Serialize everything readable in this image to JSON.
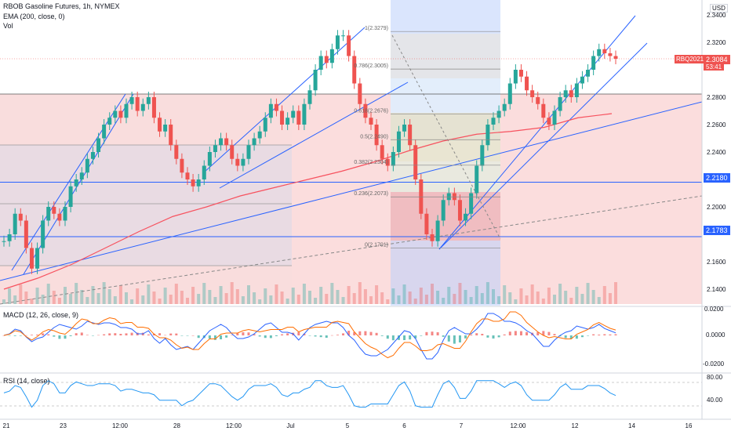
{
  "header": {
    "title": "RBOB Gasoline Futures, 1h, NYMEX",
    "indicator1": "EMA (200, close, 0)",
    "indicator2": "Vol",
    "currency": "USD"
  },
  "price_tag": {
    "symbol": "RBQ2021",
    "price": "2.3084",
    "countdown": "53:41"
  },
  "hlines": [
    {
      "value": 2.218,
      "label": "2.2180",
      "color": "#2962ff"
    },
    {
      "value": 2.1783,
      "label": "2.1783",
      "color": "#2962ff"
    }
  ],
  "fib": {
    "levels": [
      {
        "ratio": "1",
        "value": 2.3279,
        "label": "1(2.3279)"
      },
      {
        "ratio": "0.786",
        "value": 2.3005,
        "label": "0.786(2.3005)"
      },
      {
        "ratio": "0.618",
        "value": 2.2676,
        "label": "0.618(2.2676)"
      },
      {
        "ratio": "0.5",
        "value": 2.249,
        "label": "0.5(2.2490)"
      },
      {
        "ratio": "0.382",
        "value": 2.2304,
        "label": "0.382(2.2304)"
      },
      {
        "ratio": "0.236",
        "value": 2.2073,
        "label": "0.236(2.2073)"
      },
      {
        "ratio": "0",
        "value": 2.1701,
        "label": "0(2.1701)"
      }
    ]
  },
  "colors": {
    "up": "#26a69a",
    "down": "#ef5350",
    "ema": "#f7525f",
    "line_blue": "#2962ff",
    "macd": "#2962ff",
    "signal": "#ff6d00",
    "rsi": "#2196f3",
    "zone_red": "#f8d7d7",
    "zone_blue": "#c7d7fb"
  },
  "macd": {
    "title": "MACD (12, 26, close, 9)",
    "ticks": [
      "0.0200",
      "0.0000",
      "-0.0200"
    ]
  },
  "rsi": {
    "title": "RSI (14, close)",
    "ticks": [
      "80.00",
      "40.00"
    ]
  },
  "chart_data": {
    "type": "line",
    "title": "RBOB Gasoline Futures, 1h, NYMEX",
    "xlabel": "",
    "ylabel": "USD",
    "x_ticks": [
      "21",
      "23",
      "12:00",
      "28",
      "12:00",
      "Jul",
      "5",
      "6",
      "7",
      "12:00",
      "12",
      "14",
      "16"
    ],
    "y_ticks": [
      "2.3400",
      "2.3200",
      "2.2800",
      "2.2600",
      "2.2400",
      "2.2200",
      "2.2000",
      "2.1600",
      "2.1400"
    ],
    "ylim": [
      2.128,
      2.348
    ],
    "grid": false,
    "series": [
      {
        "name": "RBQ2021",
        "values": [
          2.175,
          2.18,
          2.195,
          2.19,
          2.17,
          2.155,
          2.17,
          2.19,
          2.2,
          2.195,
          2.19,
          2.2,
          2.215,
          2.22,
          2.225,
          2.235,
          2.24,
          2.25,
          2.26,
          2.265,
          2.27,
          2.265,
          2.275,
          2.28,
          2.27,
          2.275,
          2.28,
          2.265,
          2.255,
          2.26,
          2.245,
          2.235,
          2.225,
          2.22,
          2.215,
          2.22,
          2.23,
          2.24,
          2.245,
          2.25,
          2.245,
          2.235,
          2.23,
          2.235,
          2.245,
          2.25,
          2.255,
          2.265,
          2.275,
          2.27,
          2.26,
          2.265,
          2.27,
          2.26,
          2.275,
          2.285,
          2.3,
          2.31,
          2.305,
          2.315,
          2.325,
          2.325,
          2.31,
          2.29,
          2.275,
          2.265,
          2.26,
          2.245,
          2.235,
          2.23,
          2.24,
          2.255,
          2.26,
          2.245,
          2.22,
          2.195,
          2.18,
          2.175,
          2.19,
          2.205,
          2.21,
          2.205,
          2.19,
          2.195,
          2.21,
          2.23,
          2.245,
          2.26,
          2.265,
          2.27,
          2.275,
          2.29,
          2.3,
          2.295,
          2.285,
          2.28,
          2.275,
          2.265,
          2.26,
          2.27,
          2.28,
          2.285,
          2.28,
          2.29,
          2.295,
          2.3,
          2.31,
          2.315,
          2.312,
          2.31,
          2.308
        ]
      },
      {
        "name": "EMA (200, close, 0)",
        "values": [
          2.14,
          2.148,
          2.158,
          2.17,
          2.182,
          2.193,
          2.2,
          2.208,
          2.214,
          2.22,
          2.226,
          2.233,
          2.241,
          2.248,
          2.253,
          2.255,
          2.258,
          2.265,
          2.268
        ]
      }
    ]
  }
}
